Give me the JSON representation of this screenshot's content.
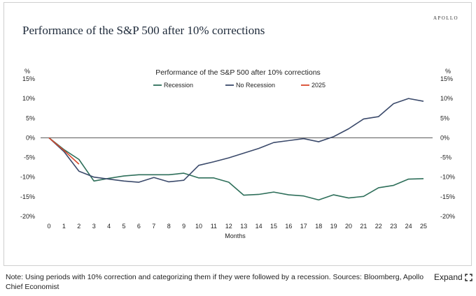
{
  "brand": "APOLLO",
  "figure_title": "Performance of the S&P 500 after 10% corrections",
  "note": "Note: Using periods with 10% correction and categorizing them if they were followed by a recession. Sources: Bloomberg, Apollo Chief Economist",
  "expand_label": "Expand",
  "colors": {
    "recession": "#2e6f5a",
    "no_recession": "#3b4a6b",
    "y2025": "#d9482b",
    "zero_line": "#555555"
  },
  "chart_data": {
    "type": "line",
    "title": "Performance of the S&P 500 after 10% corrections",
    "xlabel": "Months",
    "ylabel_left": "%",
    "ylabel_right": "%",
    "x": [
      0,
      1,
      2,
      3,
      4,
      5,
      6,
      7,
      8,
      9,
      10,
      11,
      12,
      13,
      14,
      15,
      16,
      17,
      18,
      19,
      20,
      21,
      22,
      23,
      24,
      25
    ],
    "xticks": [
      "0",
      "1",
      "2",
      "3",
      "4",
      "5",
      "6",
      "7",
      "8",
      "9",
      "10",
      "11",
      "12",
      "13",
      "14",
      "15",
      "16",
      "17",
      "18",
      "19",
      "20",
      "21",
      "22",
      "23",
      "24",
      "25"
    ],
    "ylim": [
      -20,
      15
    ],
    "yticks": [
      15,
      10,
      5,
      0,
      -5,
      -10,
      -15,
      -20
    ],
    "ytick_labels": [
      "15%",
      "10%",
      "5%",
      "0%",
      "-5%",
      "-10%",
      "-15%",
      "-20%"
    ],
    "legend": [
      "Recession",
      "No Recession",
      "2025"
    ],
    "series": [
      {
        "name": "Recession",
        "key": "recession",
        "values": [
          0,
          -3,
          -5.5,
          -11,
          -10.3,
          -9.7,
          -9.4,
          -9.4,
          -9.4,
          -9,
          -10.2,
          -10.2,
          -11.3,
          -14.6,
          -14.4,
          -13.8,
          -14.5,
          -14.8,
          -15.8,
          -14.5,
          -15.3,
          -14.9,
          -12.7,
          -12.1,
          -10.5,
          -10.4
        ]
      },
      {
        "name": "No Recession",
        "key": "no_recession",
        "values": [
          0,
          -3.5,
          -8.5,
          -10,
          -10.5,
          -11,
          -11.3,
          -10.1,
          -11.2,
          -10.8,
          -7,
          -6.1,
          -5.1,
          -3.9,
          -2.7,
          -1.2,
          -0.7,
          -0.2,
          -1,
          0.3,
          2.3,
          4.8,
          5.4,
          8.7,
          10,
          9.3
        ]
      },
      {
        "name": "2025",
        "key": "y2025",
        "x": [
          0,
          1,
          2
        ],
        "values": [
          0,
          -3.2,
          -6.7
        ]
      }
    ]
  }
}
